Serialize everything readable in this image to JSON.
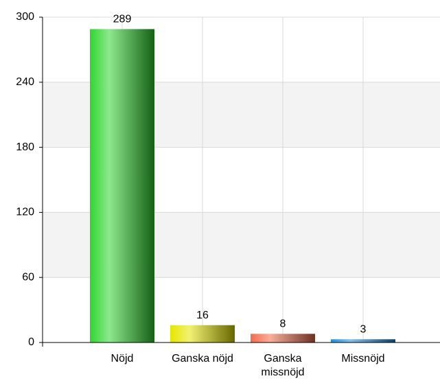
{
  "chart_data": {
    "type": "bar",
    "categories": [
      "Nöjd",
      "Ganska nöjd",
      "Ganska missnöjd",
      "Missnöjd"
    ],
    "values": [
      289,
      16,
      8,
      3
    ],
    "colors": [
      "#2fd62f",
      "#e6e600",
      "#f26b4a",
      "#1f8fe0"
    ],
    "ylim": [
      0,
      300
    ],
    "yticks": [
      0,
      60,
      120,
      180,
      240,
      300
    ],
    "grid": true
  }
}
